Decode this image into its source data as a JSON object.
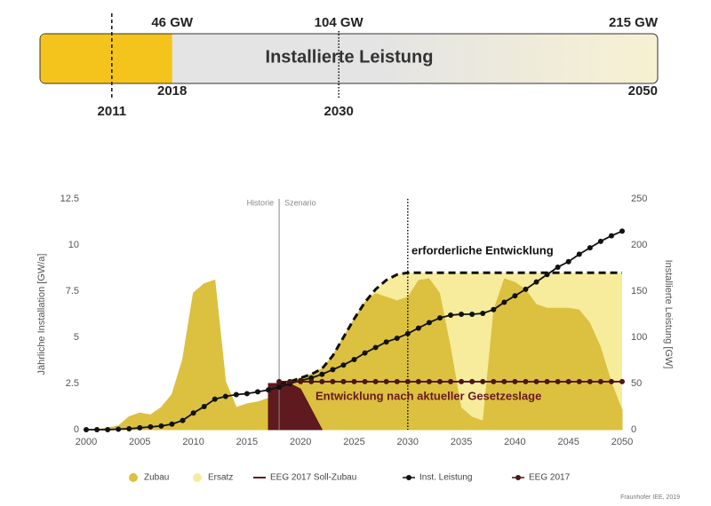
{
  "header": {
    "title": "Installierte Leistung",
    "bar_color": "#e4e4e4",
    "fill_color": "#f5c41c",
    "markers": [
      {
        "year": "2011",
        "gw": 25,
        "line": "dashed"
      },
      {
        "year": "2018",
        "gw": {
          "value": 46,
          "label": "46 GW"
        },
        "filled": true
      },
      {
        "year": "2030",
        "gw": {
          "value": 104,
          "label": "104 GW"
        },
        "line": "dotted"
      },
      {
        "year": "2050",
        "gw": {
          "value": 215,
          "label": "215 GW"
        }
      }
    ]
  },
  "chart_data": {
    "type": "combo",
    "x": [
      2000,
      2001,
      2002,
      2003,
      2004,
      2005,
      2006,
      2007,
      2008,
      2009,
      2010,
      2011,
      2012,
      2013,
      2014,
      2015,
      2016,
      2017,
      2018,
      2019,
      2020,
      2021,
      2022,
      2023,
      2024,
      2025,
      2026,
      2027,
      2028,
      2029,
      2030,
      2031,
      2032,
      2033,
      2034,
      2035,
      2036,
      2037,
      2038,
      2039,
      2040,
      2041,
      2042,
      2043,
      2044,
      2045,
      2046,
      2047,
      2048,
      2049,
      2050
    ],
    "xlim": [
      2000,
      2050
    ],
    "xticks": [
      2000,
      2005,
      2010,
      2015,
      2020,
      2025,
      2030,
      2035,
      2040,
      2045,
      2050
    ],
    "ylim": [
      0,
      12.5
    ],
    "yticks": [
      0,
      2.5,
      5,
      7.5,
      10,
      12.5
    ],
    "y2lim": [
      0,
      250
    ],
    "y2ticks": [
      0,
      50,
      100,
      150,
      200,
      250
    ],
    "ylabel": "Jährliche Installation [GW/a]",
    "y2label": "Installierte Leistung [GW]",
    "series": [
      {
        "name": "Zubau",
        "style": "area",
        "color": "#dcc040",
        "values": [
          0,
          0,
          0.1,
          0.2,
          0.7,
          0.9,
          0.8,
          1.2,
          1.9,
          3.8,
          7.4,
          7.9,
          8.1,
          2.6,
          1.2,
          1.4,
          1.5,
          1.7,
          2.4,
          2.6,
          2.8,
          3.0,
          3.3,
          4.0,
          5.0,
          6.0,
          6.9,
          7.4,
          7.2,
          7.0,
          7.2,
          8.1,
          8.2,
          7.4,
          4.5,
          1.2,
          0.7,
          0.5,
          6.5,
          8.2,
          8.0,
          7.6,
          6.8,
          6.6,
          6.6,
          6.6,
          6.5,
          5.8,
          4.5,
          2.6,
          1.1
        ]
      },
      {
        "name": "Ersatz",
        "style": "area",
        "color": "#f6ec9c",
        "stack_on": "Zubau",
        "values": [
          null,
          null,
          null,
          null,
          null,
          null,
          null,
          null,
          null,
          null,
          null,
          null,
          null,
          null,
          null,
          null,
          null,
          null,
          0.1,
          0,
          0,
          0,
          0,
          0,
          0,
          0,
          0,
          0.2,
          0.9,
          1.4,
          1.3,
          0.4,
          0.3,
          1.1,
          4.0,
          7.3,
          7.8,
          8.0,
          2.0,
          0.3,
          0.5,
          0.9,
          1.7,
          1.9,
          1.9,
          1.9,
          2.0,
          2.7,
          4.0,
          5.9,
          7.4
        ]
      },
      {
        "name": "EEG 2017 Soll-Zubau",
        "style": "area",
        "color": "#5e1a1e",
        "values": [
          null,
          null,
          null,
          null,
          null,
          null,
          null,
          null,
          null,
          null,
          null,
          null,
          null,
          null,
          null,
          null,
          null,
          2.5,
          2.5,
          2.5,
          2.2,
          1.1,
          0,
          null,
          null,
          null,
          null,
          null,
          null,
          null,
          null,
          null,
          null,
          null,
          null,
          null,
          null,
          null,
          null,
          null,
          null,
          null,
          null,
          null,
          null,
          null,
          null,
          null,
          null,
          null,
          null
        ]
      },
      {
        "name": "Inst. Leistung",
        "style": "line-dots",
        "axis": "y2",
        "color": "#111111",
        "values": [
          0,
          0,
          0,
          0.5,
          1,
          2,
          3,
          4,
          6,
          10,
          18,
          25,
          33,
          36,
          38,
          39,
          41,
          43,
          46,
          50,
          53,
          56,
          60,
          65,
          70,
          76,
          83,
          89,
          95,
          99,
          104,
          110,
          116,
          121,
          124,
          125,
          125,
          126,
          130,
          138,
          145,
          152,
          160,
          168,
          176,
          182,
          190,
          197,
          204,
          210,
          215
        ]
      },
      {
        "name": "EEG 2017",
        "style": "line-dots",
        "axis": "y2",
        "color": "#4a1618",
        "values": [
          null,
          null,
          null,
          null,
          null,
          null,
          null,
          null,
          null,
          null,
          null,
          null,
          null,
          null,
          null,
          null,
          null,
          null,
          52,
          52,
          52,
          52,
          52,
          52,
          52,
          52,
          52,
          52,
          52,
          52,
          52,
          52,
          52,
          52,
          52,
          52,
          52,
          52,
          52,
          52,
          52,
          52,
          52,
          52,
          52,
          52,
          52,
          52,
          52,
          52,
          52
        ]
      }
    ],
    "required": {
      "label": "erforderliche Entwicklung",
      "color": "#111111",
      "values": [
        null,
        null,
        null,
        null,
        null,
        null,
        null,
        null,
        null,
        null,
        null,
        null,
        null,
        null,
        null,
        null,
        null,
        null,
        2.5,
        2.6,
        2.8,
        3.0,
        3.3,
        4.0,
        5.0,
        6.0,
        6.9,
        7.6,
        8.1,
        8.4,
        8.5,
        8.5,
        8.5,
        8.5,
        8.5,
        8.5,
        8.5,
        8.5,
        8.5,
        8.5,
        8.5,
        8.5,
        8.5,
        8.5,
        8.5,
        8.5,
        8.5,
        8.5,
        8.5,
        8.5,
        8.5
      ]
    },
    "law_label": "Entwicklung nach aktueller Gesetzeslage",
    "law_color": "#6a1a24",
    "history_label": "Historie",
    "scenario_label": "Szenario",
    "split_x": 2018,
    "target_x": 2030,
    "credit": "Fraunhofer IEE, 2019"
  }
}
